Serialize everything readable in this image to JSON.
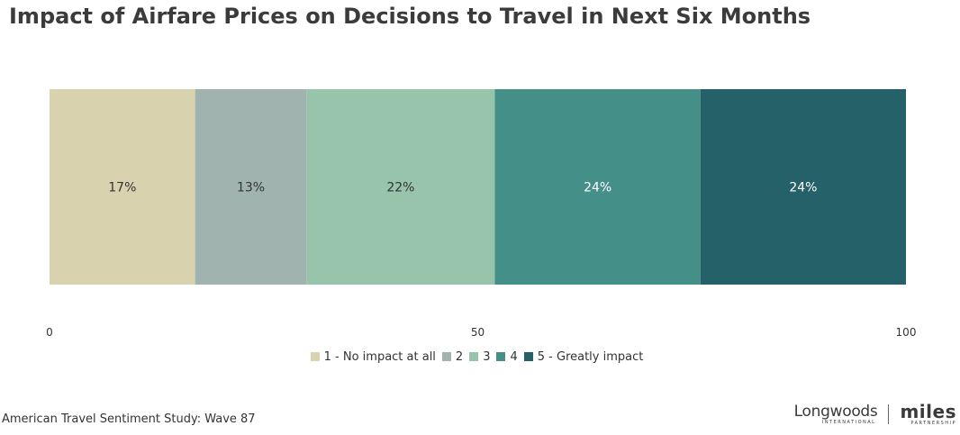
{
  "chart_data": {
    "type": "bar",
    "orientation": "horizontal-stacked",
    "title": "Impact of Airfare Prices on Decisions to Travel in Next Six Months",
    "xlim": [
      0,
      100
    ],
    "x_ticks": [
      "0",
      "50",
      "100"
    ],
    "legend_position": "bottom",
    "series": [
      {
        "name": "1 - No impact at all",
        "value": 17,
        "label": "17%",
        "color": "#d8d2ae",
        "label_color": "#333333"
      },
      {
        "name": "2",
        "value": 13,
        "label": "13%",
        "color": "#a1b3ae",
        "label_color": "#333333"
      },
      {
        "name": "3",
        "value": 22,
        "label": "22%",
        "color": "#97c4ab",
        "label_color": "#333333"
      },
      {
        "name": "4",
        "value": 24,
        "label": "24%",
        "color": "#448f88",
        "label_color": "#ffffff"
      },
      {
        "name": "5 - Greatly impact",
        "value": 24,
        "label": "24%",
        "color": "#256168",
        "label_color": "#ffffff"
      }
    ]
  },
  "footer": {
    "source": "American Travel Sentiment Study: Wave 87"
  },
  "logos": {
    "longwoods": "Longwoods",
    "longwoods_sub": "INTERNATIONAL",
    "miles": "miles",
    "miles_sub": "PARTNERSHIP"
  }
}
